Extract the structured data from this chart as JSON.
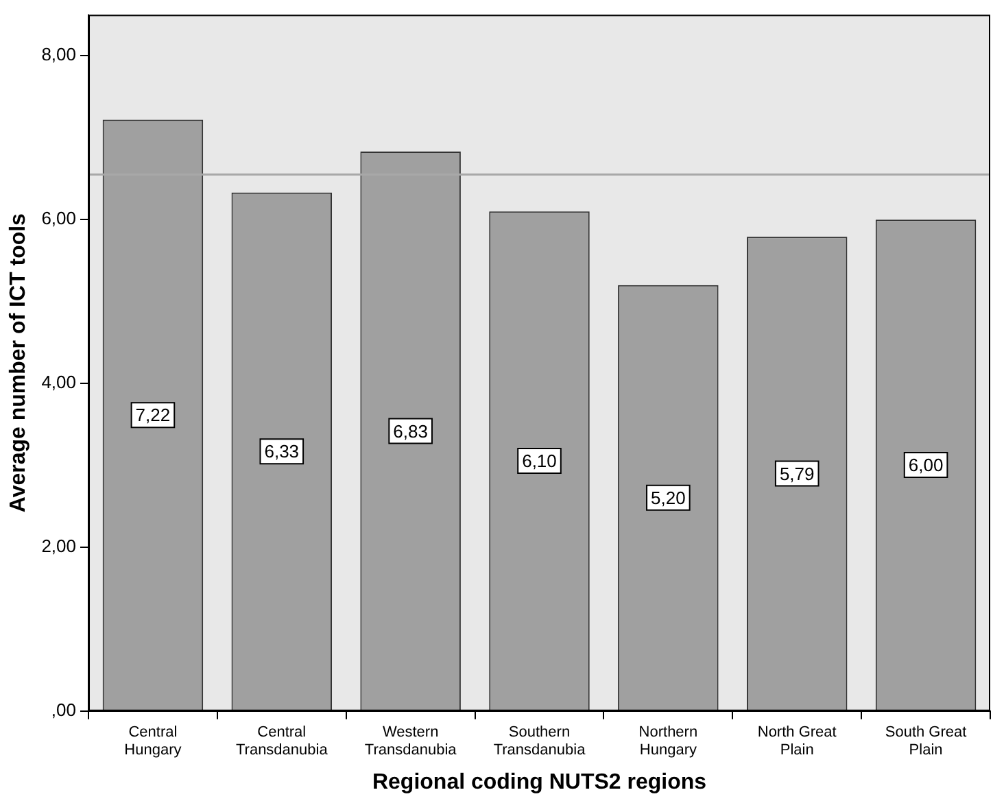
{
  "chart_data": {
    "type": "bar",
    "xlabel": "Regional coding NUTS2 regions",
    "ylabel": "Average number of ICT tools",
    "categories": [
      "Central Hungary",
      "Central Transdanubia",
      "Western Transdanubia",
      "Southern Transdanubia",
      "Northern Hungary",
      "North Great Plain",
      "South Great Plain"
    ],
    "values": [
      7.22,
      6.33,
      6.83,
      6.1,
      5.2,
      5.79,
      6.0
    ],
    "value_labels": [
      "7,22",
      "6,33",
      "6,83",
      "6,10",
      "5,20",
      "5,79",
      "6,00"
    ],
    "color": "#a0a0a0",
    "ylim": [
      0,
      8.5
    ],
    "yticks": [
      {
        "value": 0,
        "label": ",00"
      },
      {
        "value": 2,
        "label": "2,00"
      },
      {
        "value": 4,
        "label": "4,00"
      },
      {
        "value": 6,
        "label": "6,00"
      },
      {
        "value": 8,
        "label": "8,00"
      }
    ],
    "ref_lines": [
      {
        "axis": "y",
        "value": 6.55,
        "color": "#a8a8a8"
      }
    ],
    "grid": false,
    "legend": false
  }
}
